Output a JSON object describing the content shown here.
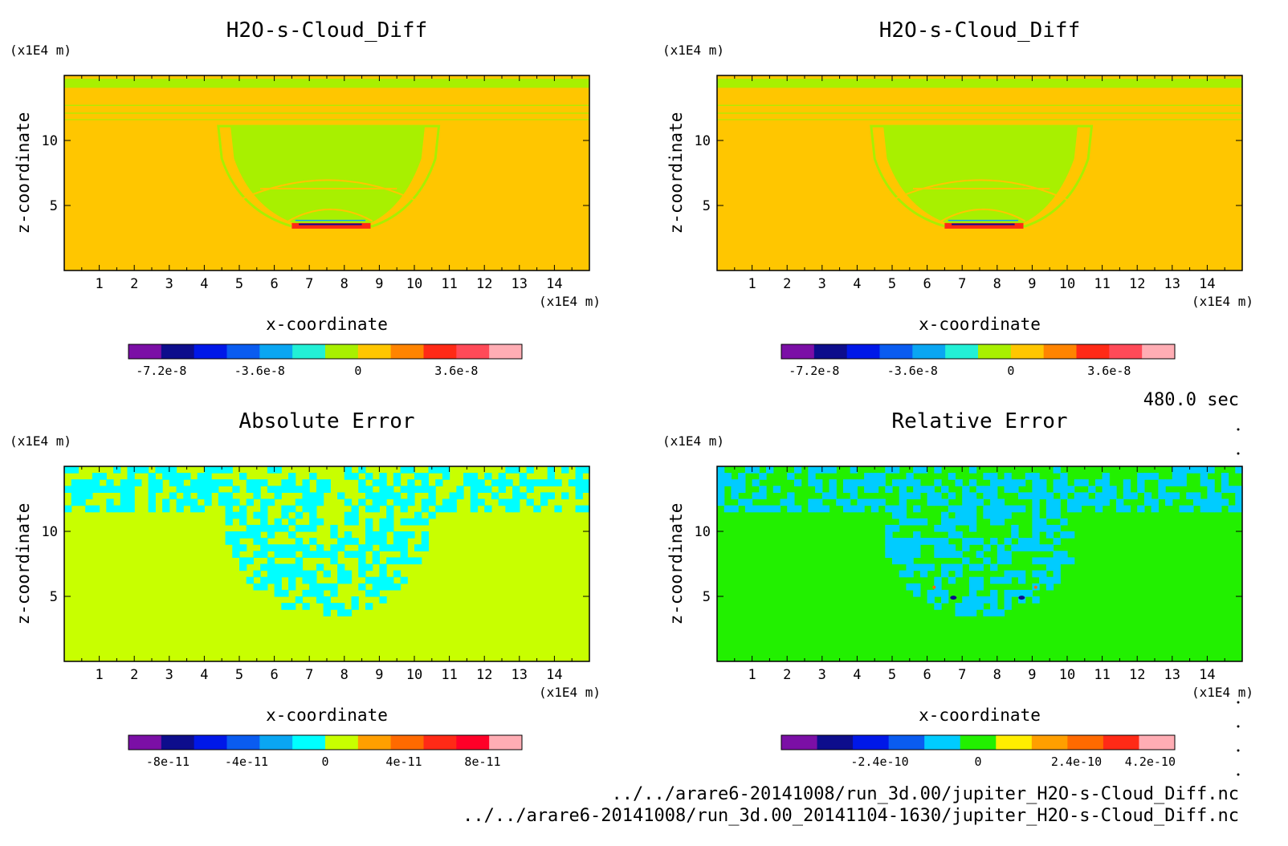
{
  "time_label": "480.0 sec",
  "files": [
    "../../arare6-20141008/run_3d.00/jupiter_H2O-s-Cloud_Diff.nc",
    "../../arare6-20141008/run_3d.00_20141104-1630/jupiter_H2O-s-Cloud_Diff.nc"
  ],
  "chart_data": [
    {
      "type": "heatmap",
      "title": "H2O-s-Cloud_Diff",
      "xlabel": "x-coordinate",
      "ylabel": "z-coordinate",
      "x_unit": "(x1E4 m)",
      "y_unit": "(x1E4 m)",
      "xlim": [
        0,
        15
      ],
      "ylim": [
        0,
        15
      ],
      "x_ticks": [
        "1",
        "2",
        "3",
        "4",
        "5",
        "6",
        "7",
        "8",
        "9",
        "10",
        "11",
        "12",
        "13",
        "14"
      ],
      "y_ticks": [
        "5",
        "10"
      ],
      "background_value": 1e-09,
      "colorbar": {
        "colors": [
          "#7b0fa6",
          "#0d0d8c",
          "#0018e8",
          "#0a5cf0",
          "#0aa6f2",
          "#22f0d6",
          "#a8f000",
          "#ffc600",
          "#ff8400",
          "#ff2a16",
          "#ff4a58",
          "#ffadb4"
        ],
        "tick_labels": [
          "-7.2e-8",
          "-3.6e-8",
          "0",
          "3.6e-8"
        ],
        "tick_values": [
          -7.2e-08,
          -3.6e-08,
          0,
          3.6e-08
        ],
        "range": [
          -8.4e-08,
          6e-08
        ]
      }
    },
    {
      "type": "heatmap",
      "title": "H2O-s-Cloud_Diff",
      "xlabel": "x-coordinate",
      "ylabel": "z-coordinate",
      "x_unit": "(x1E4 m)",
      "y_unit": "(x1E4 m)",
      "xlim": [
        0,
        15
      ],
      "ylim": [
        0,
        15
      ],
      "x_ticks": [
        "1",
        "2",
        "3",
        "4",
        "5",
        "6",
        "7",
        "8",
        "9",
        "10",
        "11",
        "12",
        "13",
        "14"
      ],
      "y_ticks": [
        "5",
        "10"
      ],
      "background_value": 1e-09,
      "colorbar": {
        "colors": [
          "#7b0fa6",
          "#0d0d8c",
          "#0018e8",
          "#0a5cf0",
          "#0aa6f2",
          "#22f0d6",
          "#a8f000",
          "#ffc600",
          "#ff8400",
          "#ff2a16",
          "#ff4a58",
          "#ffadb4"
        ],
        "tick_labels": [
          "-7.2e-8",
          "-3.6e-8",
          "0",
          "3.6e-8"
        ],
        "tick_values": [
          -7.2e-08,
          -3.6e-08,
          0,
          3.6e-08
        ],
        "range": [
          -8.4e-08,
          6e-08
        ]
      }
    },
    {
      "type": "heatmap",
      "title": "Absolute Error",
      "xlabel": "x-coordinate",
      "ylabel": "z-coordinate",
      "x_unit": "(x1E4 m)",
      "y_unit": "(x1E4 m)",
      "xlim": [
        0,
        15
      ],
      "ylim": [
        0,
        15
      ],
      "x_ticks": [
        "1",
        "2",
        "3",
        "4",
        "5",
        "6",
        "7",
        "8",
        "9",
        "10",
        "11",
        "12",
        "13",
        "14"
      ],
      "y_ticks": [
        "5",
        "10"
      ],
      "background_value": 1e-12,
      "colorbar": {
        "colors": [
          "#7b0fa6",
          "#0d0d8c",
          "#0018e8",
          "#0a5cf0",
          "#0aa6f2",
          "#00ffff",
          "#c8ff00",
          "#ff9f00",
          "#ff6a00",
          "#ff2a16",
          "#ff0028",
          "#ffadb4"
        ],
        "tick_labels": [
          "-8e-11",
          "-4e-11",
          "0",
          "4e-11",
          "8e-11"
        ],
        "tick_values": [
          -8e-11,
          -4e-11,
          0,
          4e-11,
          8e-11
        ],
        "range": [
          -1e-10,
          1e-10
        ]
      }
    },
    {
      "type": "heatmap",
      "title": "Relative Error",
      "xlabel": "x-coordinate",
      "ylabel": "z-coordinate",
      "x_unit": "(x1E4 m)",
      "y_unit": "(x1E4 m)",
      "xlim": [
        0,
        15
      ],
      "ylim": [
        0,
        15
      ],
      "x_ticks": [
        "1",
        "2",
        "3",
        "4",
        "5",
        "6",
        "7",
        "8",
        "9",
        "10",
        "11",
        "12",
        "13",
        "14"
      ],
      "y_ticks": [
        "5",
        "10"
      ],
      "background_value": 1e-11,
      "colorbar": {
        "colors": [
          "#7b0fa6",
          "#0d0d8c",
          "#0018e8",
          "#0a5cf0",
          "#00ccff",
          "#22f000",
          "#ffee00",
          "#ff9f00",
          "#ff6a00",
          "#ff2a16",
          "#ffadb4"
        ],
        "tick_labels": [
          "-2.4e-10",
          "0",
          "2.4e-10",
          "4.2e-10"
        ],
        "tick_values": [
          -2.4e-10,
          0,
          2.4e-10,
          4.2e-10
        ],
        "range": [
          -4.8e-10,
          4.8e-10
        ]
      }
    }
  ]
}
